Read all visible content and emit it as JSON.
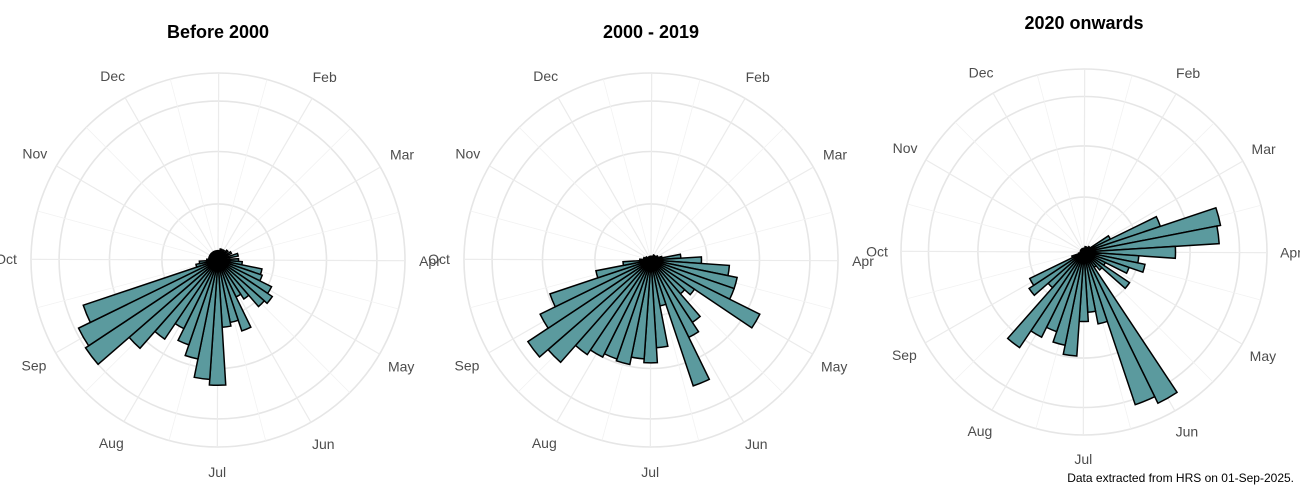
{
  "caption": "Data extracted from HRS on 01-Sep-2025.",
  "colors": {
    "bar": "#5b9a9e",
    "outline": "#000000",
    "grid": "#e6e6e6",
    "label": "#4d4d4d"
  },
  "chart_data": [
    {
      "type": "polar-bar",
      "title": "Before 2000",
      "theta_labels": [
        "Dec",
        "Feb",
        "Mar",
        "Apr",
        "May",
        "Jun",
        "Jul",
        "Aug",
        "Sep",
        "Oct",
        "Nov"
      ],
      "theta_label_months": [
        0,
        2,
        3,
        4,
        5,
        6,
        7,
        8,
        9,
        10,
        11
      ],
      "bins_per_year": 48,
      "r_max": 100,
      "grid": true,
      "bars": [
        {
          "month": 0.5,
          "value": 5
        },
        {
          "month": 1.0,
          "value": 5
        },
        {
          "month": 1.5,
          "value": 6
        },
        {
          "month": 2.0,
          "value": 6
        },
        {
          "month": 2.5,
          "value": 7
        },
        {
          "month": 3.0,
          "value": 8
        },
        {
          "month": 3.5,
          "value": 11
        },
        {
          "month": 4.0,
          "value": 11
        },
        {
          "month": 4.25,
          "value": 13
        },
        {
          "month": 4.5,
          "value": 24
        },
        {
          "month": 4.75,
          "value": 25
        },
        {
          "month": 5.0,
          "value": 32
        },
        {
          "month": 5.25,
          "value": 35
        },
        {
          "month": 5.5,
          "value": 33
        },
        {
          "month": 5.75,
          "value": 25
        },
        {
          "month": 6.0,
          "value": 22
        },
        {
          "month": 6.25,
          "value": 40
        },
        {
          "month": 6.5,
          "value": 34
        },
        {
          "month": 6.75,
          "value": 36
        },
        {
          "month": 7.0,
          "value": 67
        },
        {
          "month": 7.25,
          "value": 64
        },
        {
          "month": 7.5,
          "value": 54
        },
        {
          "month": 7.75,
          "value": 48
        },
        {
          "month": 8.0,
          "value": 41
        },
        {
          "month": 8.25,
          "value": 51
        },
        {
          "month": 8.5,
          "value": 63
        },
        {
          "month": 8.75,
          "value": 85
        },
        {
          "month": 9.0,
          "value": 83
        },
        {
          "month": 9.25,
          "value": 76
        },
        {
          "month": 9.5,
          "value": 12
        },
        {
          "month": 9.75,
          "value": 10
        },
        {
          "month": 10.0,
          "value": 6
        },
        {
          "month": 10.5,
          "value": 5
        },
        {
          "month": 11.0,
          "value": 5
        },
        {
          "month": 11.5,
          "value": 5
        },
        {
          "month": 12.0,
          "value": 5
        }
      ]
    },
    {
      "type": "polar-bar",
      "title": "2000 - 2019",
      "theta_labels": [
        "Dec",
        "Feb",
        "Mar",
        "Apr",
        "May",
        "Jun",
        "Jul",
        "Aug",
        "Sep",
        "Oct",
        "Nov"
      ],
      "theta_label_months": [
        0,
        2,
        3,
        4,
        5,
        6,
        7,
        8,
        9,
        10,
        11
      ],
      "bins_per_year": 48,
      "r_max": 100,
      "grid": true,
      "bars": [
        {
          "month": 0.5,
          "value": 2
        },
        {
          "month": 1.0,
          "value": 2
        },
        {
          "month": 1.5,
          "value": 2
        },
        {
          "month": 2.0,
          "value": 3
        },
        {
          "month": 2.5,
          "value": 3
        },
        {
          "month": 3.0,
          "value": 4
        },
        {
          "month": 3.5,
          "value": 6
        },
        {
          "month": 3.75,
          "value": 16
        },
        {
          "month": 4.0,
          "value": 27
        },
        {
          "month": 4.25,
          "value": 42
        },
        {
          "month": 4.5,
          "value": 47
        },
        {
          "month": 4.75,
          "value": 47
        },
        {
          "month": 5.0,
          "value": 65
        },
        {
          "month": 5.25,
          "value": 28
        },
        {
          "month": 5.5,
          "value": 24
        },
        {
          "month": 5.75,
          "value": 40
        },
        {
          "month": 6.0,
          "value": 46
        },
        {
          "month": 6.25,
          "value": 71
        },
        {
          "month": 6.5,
          "value": 25
        },
        {
          "month": 6.75,
          "value": 47
        },
        {
          "month": 7.0,
          "value": 55
        },
        {
          "month": 7.25,
          "value": 53
        },
        {
          "month": 7.5,
          "value": 57
        },
        {
          "month": 7.75,
          "value": 56
        },
        {
          "month": 8.0,
          "value": 58
        },
        {
          "month": 8.25,
          "value": 61
        },
        {
          "month": 8.5,
          "value": 73
        },
        {
          "month": 8.75,
          "value": 79
        },
        {
          "month": 9.0,
          "value": 66
        },
        {
          "month": 9.25,
          "value": 57
        },
        {
          "month": 9.5,
          "value": 30
        },
        {
          "month": 9.75,
          "value": 15
        },
        {
          "month": 10.0,
          "value": 6
        },
        {
          "month": 10.5,
          "value": 4
        },
        {
          "month": 11.0,
          "value": 3
        },
        {
          "month": 11.5,
          "value": 2
        },
        {
          "month": 12.0,
          "value": 2
        }
      ]
    },
    {
      "type": "polar-bar",
      "title": "2020 onwards",
      "theta_labels": [
        "Dec",
        "Feb",
        "Mar",
        "Apr",
        "May",
        "Jun",
        "Jul",
        "Aug",
        "Sep",
        "Oct",
        "Nov"
      ],
      "theta_label_months": [
        0,
        2,
        3,
        4,
        5,
        6,
        7,
        8,
        9,
        10,
        11
      ],
      "bins_per_year": 48,
      "r_max": 100,
      "grid": true,
      "bars": [
        {
          "month": 0.5,
          "value": 2
        },
        {
          "month": 1.0,
          "value": 2
        },
        {
          "month": 1.5,
          "value": 3
        },
        {
          "month": 2.0,
          "value": 3
        },
        {
          "month": 2.5,
          "value": 4
        },
        {
          "month": 3.0,
          "value": 16
        },
        {
          "month": 3.25,
          "value": 44
        },
        {
          "month": 3.5,
          "value": 76
        },
        {
          "month": 3.75,
          "value": 74
        },
        {
          "month": 4.0,
          "value": 50
        },
        {
          "month": 4.25,
          "value": 30
        },
        {
          "month": 4.5,
          "value": 34
        },
        {
          "month": 4.75,
          "value": 26
        },
        {
          "month": 5.0,
          "value": 13
        },
        {
          "month": 5.25,
          "value": 30
        },
        {
          "month": 5.5,
          "value": 13
        },
        {
          "month": 5.75,
          "value": 10
        },
        {
          "month": 6.0,
          "value": 92
        },
        {
          "month": 6.25,
          "value": 88
        },
        {
          "month": 6.5,
          "value": 40
        },
        {
          "month": 6.75,
          "value": 33
        },
        {
          "month": 7.0,
          "value": 38
        },
        {
          "month": 7.25,
          "value": 57
        },
        {
          "month": 7.5,
          "value": 52
        },
        {
          "month": 7.75,
          "value": 46
        },
        {
          "month": 8.0,
          "value": 52
        },
        {
          "month": 8.25,
          "value": 63
        },
        {
          "month": 8.5,
          "value": 26
        },
        {
          "month": 8.75,
          "value": 36
        },
        {
          "month": 9.0,
          "value": 33
        },
        {
          "month": 9.25,
          "value": 7
        },
        {
          "month": 9.5,
          "value": 3
        },
        {
          "month": 10.0,
          "value": 2
        },
        {
          "month": 10.5,
          "value": 2
        },
        {
          "month": 11.0,
          "value": 2
        },
        {
          "month": 11.5,
          "value": 2
        },
        {
          "month": 12.0,
          "value": 2
        }
      ]
    }
  ]
}
